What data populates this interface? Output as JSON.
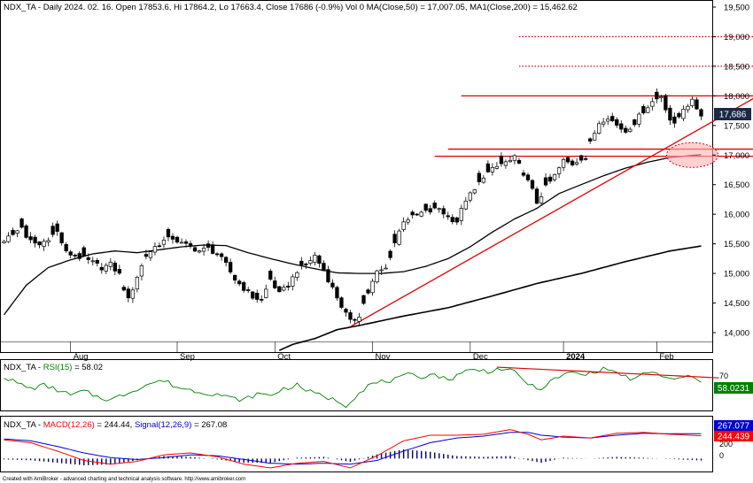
{
  "colors": {
    "up_candle": "#ffffff",
    "down_candle": "#000000",
    "ma50": "#000000",
    "ma200": "#000000",
    "trendline": "#e00000",
    "rsi": "#008000",
    "macd": "#ff0000",
    "signal": "#0000cc",
    "hist": "#000066",
    "price_label_bg": "#1a2a44",
    "rsi_label_bg": "#008000",
    "signal_label_bg": "#0000cc",
    "macd_label_bg": "#ff0000",
    "title_ma": "#000000"
  },
  "price_panel": {
    "title_prefix": "NDX_TA - Daily 2024. 02. 16. Open 17853.6, Hi 17864.2, Lo 17663.4, Close 17686 (-0.9%) Vol 0",
    "title_ma": "MA(Close,50) = 17,007.05, MA1(Close,200) = 15,462.62",
    "last_close_label": "17,686"
  },
  "rsi_panel": {
    "title_prefix": "NDX_TA -",
    "title_name": "RSI(15)",
    "title_value": "= 58.02",
    "last_label": "58.0231",
    "tick_label": "70"
  },
  "macd_panel": {
    "title_prefix": "NDX_TA -",
    "title_macd": "MACD(12,26)",
    "title_macd_value": "= 244.44,",
    "title_signal": "Signal(12,26,9)",
    "title_signal_value": "= 267.08",
    "signal_label": "267.077",
    "macd_label": "244.439",
    "ticks": [
      "200",
      "0"
    ]
  },
  "footer": "Created with AmiBroker - advanced charting and technical analysis software. http://www.amibroker.com",
  "chart_data": {
    "type": "candlestick",
    "y_ticks": [
      "19,500",
      "19,000",
      "18,500",
      "18,000",
      "17,500",
      "17,000",
      "16,500",
      "16,000",
      "15,500",
      "15,000",
      "14,500",
      "14,000"
    ],
    "ylim": [
      13700,
      19600
    ],
    "x_labels": [
      "Aug",
      "Sep",
      "Oct",
      "Nov",
      "Dec",
      "2024",
      "Feb"
    ],
    "x_label_bars": [
      15,
      39,
      61,
      83,
      105,
      126,
      147
    ],
    "bar_count": 160,
    "close_waypoints": [
      [
        0,
        15570
      ],
      [
        2,
        15650
      ],
      [
        4,
        15800
      ],
      [
        5,
        15580
      ],
      [
        8,
        15480
      ],
      [
        10,
        15600
      ],
      [
        12,
        15700
      ],
      [
        14,
        15350
      ],
      [
        16,
        15300
      ],
      [
        18,
        15250
      ],
      [
        20,
        15180
      ],
      [
        22,
        15100
      ],
      [
        24,
        15150
      ],
      [
        26,
        14980
      ],
      [
        27,
        14750
      ],
      [
        28,
        14550
      ],
      [
        30,
        14950
      ],
      [
        32,
        15300
      ],
      [
        34,
        15450
      ],
      [
        36,
        15550
      ],
      [
        38,
        15600
      ],
      [
        40,
        15500
      ],
      [
        42,
        15450
      ],
      [
        44,
        15380
      ],
      [
        46,
        15420
      ],
      [
        48,
        15330
      ],
      [
        50,
        15150
      ],
      [
        52,
        14900
      ],
      [
        54,
        14750
      ],
      [
        56,
        14600
      ],
      [
        58,
        14550
      ],
      [
        60,
        14900
      ],
      [
        62,
        14650
      ],
      [
        64,
        14800
      ],
      [
        66,
        15050
      ],
      [
        68,
        15150
      ],
      [
        70,
        15300
      ],
      [
        72,
        15050
      ],
      [
        74,
        14750
      ],
      [
        76,
        14450
      ],
      [
        78,
        14180
      ],
      [
        80,
        14300
      ],
      [
        82,
        14680
      ],
      [
        84,
        15020
      ],
      [
        86,
        15080
      ],
      [
        88,
        15520
      ],
      [
        90,
        15900
      ],
      [
        92,
        15950
      ],
      [
        94,
        16020
      ],
      [
        96,
        16050
      ],
      [
        98,
        16100
      ],
      [
        100,
        15950
      ],
      [
        102,
        15880
      ],
      [
        104,
        16250
      ],
      [
        106,
        16400
      ],
      [
        108,
        16650
      ],
      [
        110,
        16750
      ],
      [
        112,
        16850
      ],
      [
        114,
        16900
      ],
      [
        115,
        16950
      ],
      [
        117,
        16700
      ],
      [
        119,
        16400
      ],
      [
        120,
        16200
      ],
      [
        122,
        16450
      ],
      [
        124,
        16650
      ],
      [
        126,
        16900
      ],
      [
        128,
        16850
      ],
      [
        130,
        16950
      ],
      [
        131,
        16950
      ],
      [
        132,
        17200
      ],
      [
        134,
        17550
      ],
      [
        136,
        17650
      ],
      [
        138,
        17500
      ],
      [
        140,
        17400
      ],
      [
        142,
        17550
      ],
      [
        144,
        17750
      ],
      [
        146,
        17900
      ],
      [
        148,
        18000
      ],
      [
        150,
        17600
      ],
      [
        151,
        17500
      ],
      [
        153,
        17800
      ],
      [
        155,
        17900
      ],
      [
        157,
        17686
      ]
    ],
    "ma50_waypoints": [
      [
        0,
        14300
      ],
      [
        5,
        14800
      ],
      [
        10,
        15100
      ],
      [
        15,
        15230
      ],
      [
        20,
        15330
      ],
      [
        25,
        15380
      ],
      [
        30,
        15350
      ],
      [
        35,
        15400
      ],
      [
        40,
        15450
      ],
      [
        45,
        15480
      ],
      [
        50,
        15470
      ],
      [
        55,
        15350
      ],
      [
        60,
        15250
      ],
      [
        65,
        15160
      ],
      [
        70,
        15080
      ],
      [
        75,
        15010
      ],
      [
        80,
        15000
      ],
      [
        85,
        15000
      ],
      [
        90,
        15030
      ],
      [
        95,
        15120
      ],
      [
        100,
        15250
      ],
      [
        105,
        15450
      ],
      [
        110,
        15700
      ],
      [
        115,
        15920
      ],
      [
        120,
        16100
      ],
      [
        125,
        16350
      ],
      [
        130,
        16500
      ],
      [
        135,
        16650
      ],
      [
        140,
        16780
      ],
      [
        145,
        16880
      ],
      [
        150,
        16960
      ],
      [
        157,
        17007
      ]
    ],
    "ma200_waypoints": [
      [
        62,
        13700
      ],
      [
        65,
        13800
      ],
      [
        70,
        13900
      ],
      [
        75,
        14050
      ],
      [
        80,
        14120
      ],
      [
        90,
        14280
      ],
      [
        100,
        14420
      ],
      [
        110,
        14620
      ],
      [
        120,
        14830
      ],
      [
        130,
        15000
      ],
      [
        140,
        15200
      ],
      [
        150,
        15380
      ],
      [
        157,
        15462.62
      ]
    ],
    "trendlines": [
      {
        "x1": 78,
        "y1": 14100,
        "x2": 171,
        "y2": 18050
      },
      {
        "x1": 103,
        "y1": 18000,
        "x2": 171,
        "y2": 18000
      },
      {
        "x1": 100,
        "y1": 17100,
        "x2": 171,
        "y2": 17100
      },
      {
        "x1": 97,
        "y1": 16980,
        "x2": 171,
        "y2": 16980
      }
    ],
    "dotted_levels": [
      {
        "x1": 116,
        "x2": 171,
        "value": 19000
      },
      {
        "x1": 116,
        "x2": 171,
        "value": 18500
      }
    ],
    "highlight_ellipse": {
      "x": 155,
      "value": 17000
    },
    "rsi": {
      "ylim": [
        20,
        90
      ],
      "waypoints": [
        [
          0,
          68
        ],
        [
          3,
          58
        ],
        [
          6,
          50
        ],
        [
          9,
          55
        ],
        [
          12,
          48
        ],
        [
          15,
          40
        ],
        [
          18,
          46
        ],
        [
          21,
          38
        ],
        [
          24,
          33
        ],
        [
          27,
          41
        ],
        [
          30,
          50
        ],
        [
          33,
          58
        ],
        [
          36,
          62
        ],
        [
          39,
          52
        ],
        [
          42,
          48
        ],
        [
          45,
          44
        ],
        [
          48,
          42
        ],
        [
          51,
          36
        ],
        [
          54,
          33
        ],
        [
          57,
          42
        ],
        [
          60,
          40
        ],
        [
          63,
          50
        ],
        [
          66,
          55
        ],
        [
          69,
          45
        ],
        [
          72,
          38
        ],
        [
          75,
          32
        ],
        [
          77,
          25
        ],
        [
          79,
          38
        ],
        [
          82,
          55
        ],
        [
          85,
          60
        ],
        [
          88,
          63
        ],
        [
          91,
          70
        ],
        [
          94,
          68
        ],
        [
          97,
          72
        ],
        [
          100,
          62
        ],
        [
          103,
          75
        ],
        [
          106,
          78
        ],
        [
          109,
          76
        ],
        [
          112,
          80
        ],
        [
          115,
          74
        ],
        [
          118,
          58
        ],
        [
          120,
          48
        ],
        [
          122,
          55
        ],
        [
          125,
          68
        ],
        [
          128,
          74
        ],
        [
          131,
          70
        ],
        [
          133,
          76
        ],
        [
          136,
          80
        ],
        [
          139,
          70
        ],
        [
          142,
          63
        ],
        [
          145,
          75
        ],
        [
          148,
          70
        ],
        [
          151,
          62
        ],
        [
          154,
          70
        ],
        [
          157,
          58
        ]
      ],
      "divergence": {
        "x1": 111,
        "y1": 82,
        "x2": 161,
        "y2": 66
      }
    },
    "macd": {
      "ylim": [
        -110,
        420
      ],
      "macd_waypoints": [
        [
          0,
          200
        ],
        [
          6,
          170
        ],
        [
          12,
          80
        ],
        [
          18,
          -20
        ],
        [
          24,
          -60
        ],
        [
          30,
          -30
        ],
        [
          36,
          40
        ],
        [
          42,
          60
        ],
        [
          48,
          20
        ],
        [
          54,
          -60
        ],
        [
          60,
          -100
        ],
        [
          66,
          -50
        ],
        [
          72,
          -30
        ],
        [
          78,
          -100
        ],
        [
          84,
          30
        ],
        [
          90,
          190
        ],
        [
          96,
          250
        ],
        [
          102,
          250
        ],
        [
          108,
          260
        ],
        [
          114,
          310
        ],
        [
          118,
          260
        ],
        [
          121,
          200
        ],
        [
          126,
          240
        ],
        [
          132,
          220
        ],
        [
          138,
          270
        ],
        [
          144,
          280
        ],
        [
          150,
          260
        ],
        [
          157,
          244
        ]
      ],
      "signal_waypoints": [
        [
          0,
          210
        ],
        [
          6,
          190
        ],
        [
          12,
          130
        ],
        [
          18,
          60
        ],
        [
          24,
          10
        ],
        [
          30,
          -10
        ],
        [
          36,
          10
        ],
        [
          42,
          40
        ],
        [
          48,
          30
        ],
        [
          54,
          -10
        ],
        [
          60,
          -50
        ],
        [
          66,
          -60
        ],
        [
          72,
          -50
        ],
        [
          78,
          -60
        ],
        [
          84,
          -20
        ],
        [
          90,
          80
        ],
        [
          96,
          170
        ],
        [
          102,
          220
        ],
        [
          108,
          240
        ],
        [
          114,
          280
        ],
        [
          118,
          280
        ],
        [
          121,
          250
        ],
        [
          126,
          230
        ],
        [
          132,
          220
        ],
        [
          138,
          250
        ],
        [
          144,
          270
        ],
        [
          150,
          265
        ],
        [
          157,
          267
        ]
      ]
    }
  }
}
